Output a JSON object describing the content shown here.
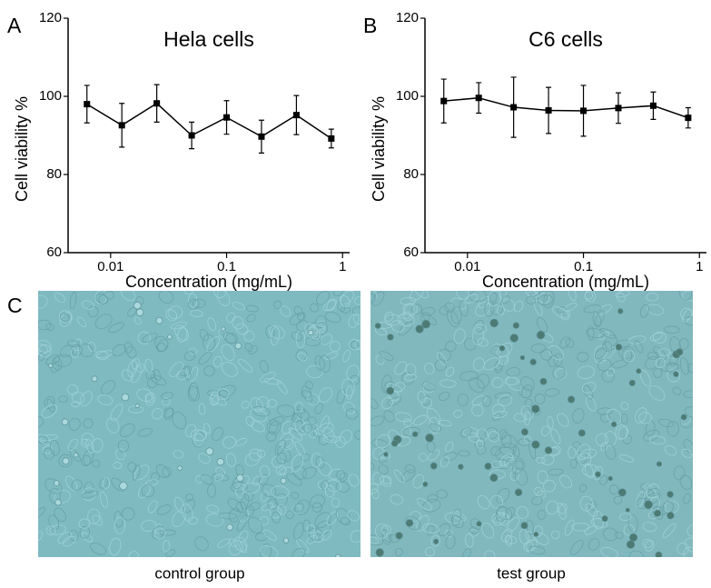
{
  "chart_data": [
    {
      "type": "line",
      "panel_label": "A",
      "title": "Hela cells",
      "xlabel": "Concentration (mg/mL)",
      "ylabel": "Cell viability %",
      "xscale": "log",
      "xlim": [
        0.0043,
        1.15
      ],
      "xticks": [
        0.01,
        0.1,
        1
      ],
      "ylim": [
        60,
        120
      ],
      "yticks": [
        60,
        80,
        100,
        120
      ],
      "color": "#000000",
      "x": [
        0.00625,
        0.0125,
        0.025,
        0.05,
        0.1,
        0.2,
        0.4,
        0.8
      ],
      "values": [
        98,
        92.6,
        98.2,
        90,
        94.6,
        89.7,
        95.2,
        89.2
      ],
      "errors": [
        4.8,
        5.6,
        4.8,
        3.4,
        4.3,
        4.2,
        5,
        2.4
      ]
    },
    {
      "type": "line",
      "panel_label": "B",
      "title": "C6 cells",
      "xlabel": "Concentration (mg/mL)",
      "ylabel": "Cell viability %",
      "xscale": "log",
      "xlim": [
        0.0043,
        1.15
      ],
      "xticks": [
        0.01,
        0.1,
        1
      ],
      "ylim": [
        60,
        120
      ],
      "yticks": [
        60,
        80,
        100,
        120
      ],
      "color": "#000000",
      "x": [
        0.00625,
        0.0125,
        0.025,
        0.05,
        0.1,
        0.2,
        0.4,
        0.8
      ],
      "values": [
        98.8,
        99.6,
        97.2,
        96.4,
        96.3,
        97,
        97.6,
        94.5
      ],
      "errors": [
        5.6,
        3.9,
        7.7,
        5.9,
        6.5,
        3.9,
        3.5,
        2.6
      ]
    }
  ],
  "panel_c": {
    "label": "C",
    "captions": [
      "control group",
      "test group"
    ]
  }
}
